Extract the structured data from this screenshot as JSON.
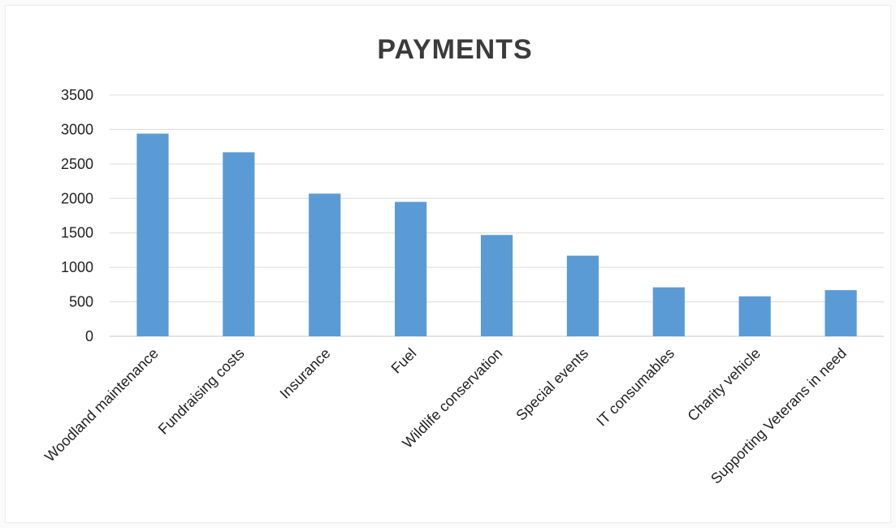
{
  "chart_data": {
    "type": "bar",
    "title": "PAYMENTS",
    "categories": [
      "Woodland maintenance",
      "Fundraising costs",
      "Insurance",
      "Fuel",
      "Wildlife conservation",
      "Special events",
      "IT consumables",
      "Charity vehicle",
      "Supporting Veterans in need"
    ],
    "values": [
      2940,
      2670,
      2070,
      1950,
      1470,
      1170,
      710,
      580,
      670
    ],
    "xlabel": "",
    "ylabel": "",
    "ylim": [
      0,
      3500
    ],
    "yticks": [
      "0",
      "500",
      "1000",
      "1500",
      "2000",
      "2500",
      "3000",
      "3500"
    ],
    "grid": true,
    "legend": "none",
    "bar_color": "#5b9bd5"
  }
}
